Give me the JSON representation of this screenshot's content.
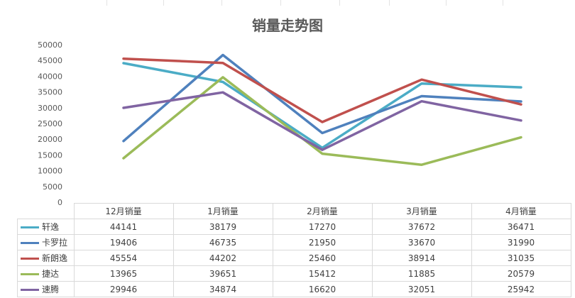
{
  "chart_data": {
    "type": "line",
    "title": "销量走势图",
    "categories": [
      "12月销量",
      "1月销量",
      "2月销量",
      "3月销量",
      "4月销量"
    ],
    "ylim": [
      0,
      50000
    ],
    "yticks": [
      "50000",
      "45000",
      "40000",
      "35000",
      "30000",
      "25000",
      "20000",
      "15000",
      "10000",
      "5000",
      "0"
    ],
    "grid": false,
    "legend": "data-table",
    "series": [
      {
        "name": "轩逸",
        "color": "#4bacc6",
        "values": [
          44141,
          38179,
          17270,
          37672,
          36471
        ]
      },
      {
        "name": "卡罗拉",
        "color": "#4f81bd",
        "values": [
          19406,
          46735,
          21950,
          33670,
          31990
        ]
      },
      {
        "name": "新朗逸",
        "color": "#c0504d",
        "values": [
          45554,
          44202,
          25460,
          38914,
          31035
        ]
      },
      {
        "name": "捷达",
        "color": "#9bbb59",
        "values": [
          13965,
          39651,
          15412,
          11885,
          20579
        ]
      },
      {
        "name": "速腾",
        "color": "#8064a2",
        "values": [
          29946,
          34874,
          16620,
          32051,
          25942
        ]
      }
    ]
  }
}
